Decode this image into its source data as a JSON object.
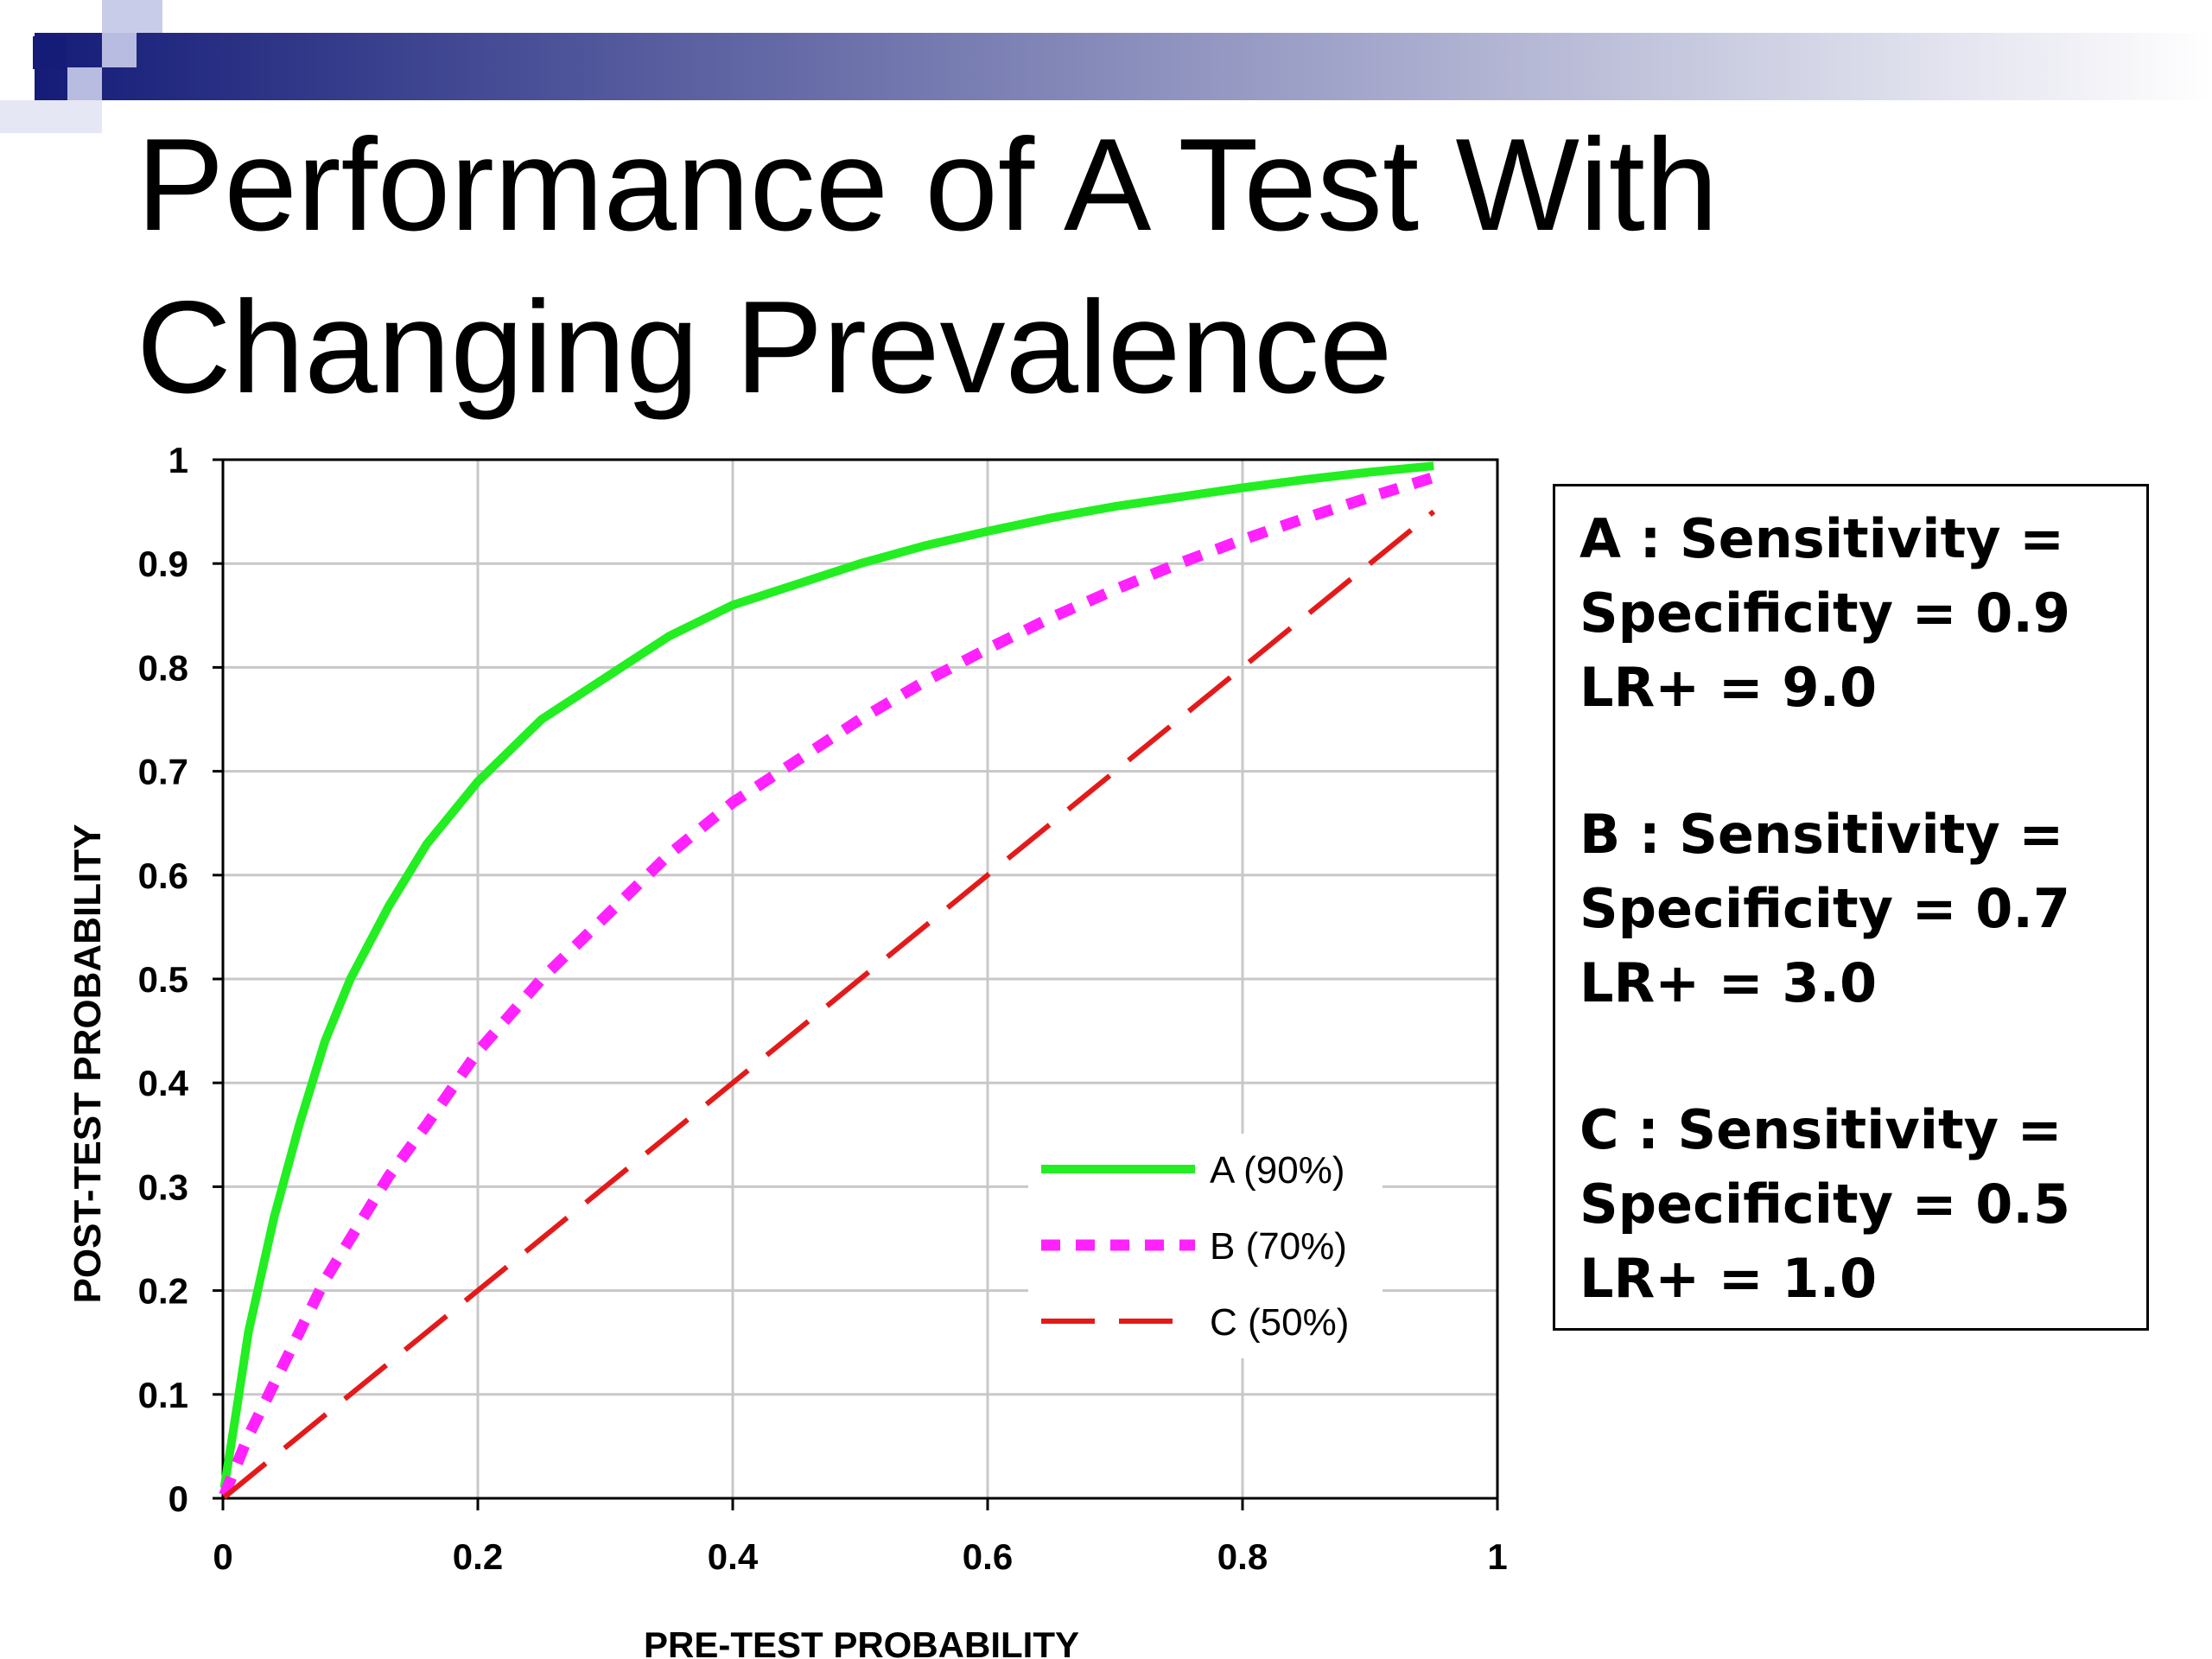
{
  "header": {
    "colors": {
      "gradient_start": "#141c78",
      "gradient_end": "#ffffff",
      "square_dark": "#141c78",
      "square_light": "#b8bce0"
    }
  },
  "slide": {
    "title_lines": [
      "Performance of A Test With",
      "Changing Prevalence"
    ]
  },
  "chart_data": {
    "type": "line",
    "title": "",
    "xlabel": "PRE-TEST PROBABILITY",
    "ylabel": "POST-TEST PROBABILITY",
    "xlim": [
      0,
      1
    ],
    "ylim": [
      0,
      1
    ],
    "xticks": [
      "0",
      "0.2",
      "0.4",
      "0.6",
      "0.8",
      "1"
    ],
    "yticks": [
      "0",
      "0.1",
      "0.2",
      "0.3",
      "0.4",
      "0.5",
      "0.6",
      "0.7",
      "0.8",
      "0.9",
      "1"
    ],
    "grid": true,
    "legend_position": "lower-right",
    "x": [
      0.001,
      0.01,
      0.02,
      0.04,
      0.06,
      0.08,
      0.1,
      0.13,
      0.16,
      0.2,
      0.25,
      0.3,
      0.35,
      0.4,
      0.45,
      0.5,
      0.55,
      0.6,
      0.65,
      0.7,
      0.75,
      0.8,
      0.85,
      0.9,
      0.95
    ],
    "series": [
      {
        "name": "A (90%)",
        "color": "#22ee22",
        "style": "solid",
        "values": [
          0.01,
          0.08,
          0.16,
          0.27,
          0.36,
          0.44,
          0.5,
          0.57,
          0.63,
          0.69,
          0.75,
          0.79,
          0.83,
          0.86,
          0.88,
          0.9,
          0.917,
          0.931,
          0.944,
          0.955,
          0.964,
          0.973,
          0.981,
          0.988,
          0.994
        ]
      },
      {
        "name": "B (70%)",
        "color": "#ff22ff",
        "style": "dotted",
        "values": [
          0.003,
          0.03,
          0.06,
          0.11,
          0.16,
          0.21,
          0.25,
          0.31,
          0.36,
          0.43,
          0.5,
          0.56,
          0.62,
          0.67,
          0.71,
          0.75,
          0.786,
          0.818,
          0.848,
          0.875,
          0.9,
          0.923,
          0.944,
          0.964,
          0.983
        ]
      },
      {
        "name": "C (50%)",
        "color": "#e41a1a",
        "style": "dashed",
        "values": [
          0.001,
          0.01,
          0.02,
          0.04,
          0.06,
          0.08,
          0.1,
          0.13,
          0.16,
          0.2,
          0.25,
          0.3,
          0.35,
          0.4,
          0.45,
          0.5,
          0.55,
          0.6,
          0.65,
          0.7,
          0.75,
          0.8,
          0.85,
          0.9,
          0.95
        ]
      }
    ]
  },
  "info_box": {
    "groups": [
      {
        "lines": [
          "A : Sensitivity =",
          "Specificity = 0.9",
          "LR+ = 9.0"
        ]
      },
      {
        "lines": [
          "B : Sensitivity =",
          "Specificity = 0.7",
          "LR+ = 3.0"
        ]
      },
      {
        "lines": [
          "C : Sensitivity =",
          "Specificity = 0.5",
          "LR+ = 1.0"
        ]
      }
    ]
  }
}
